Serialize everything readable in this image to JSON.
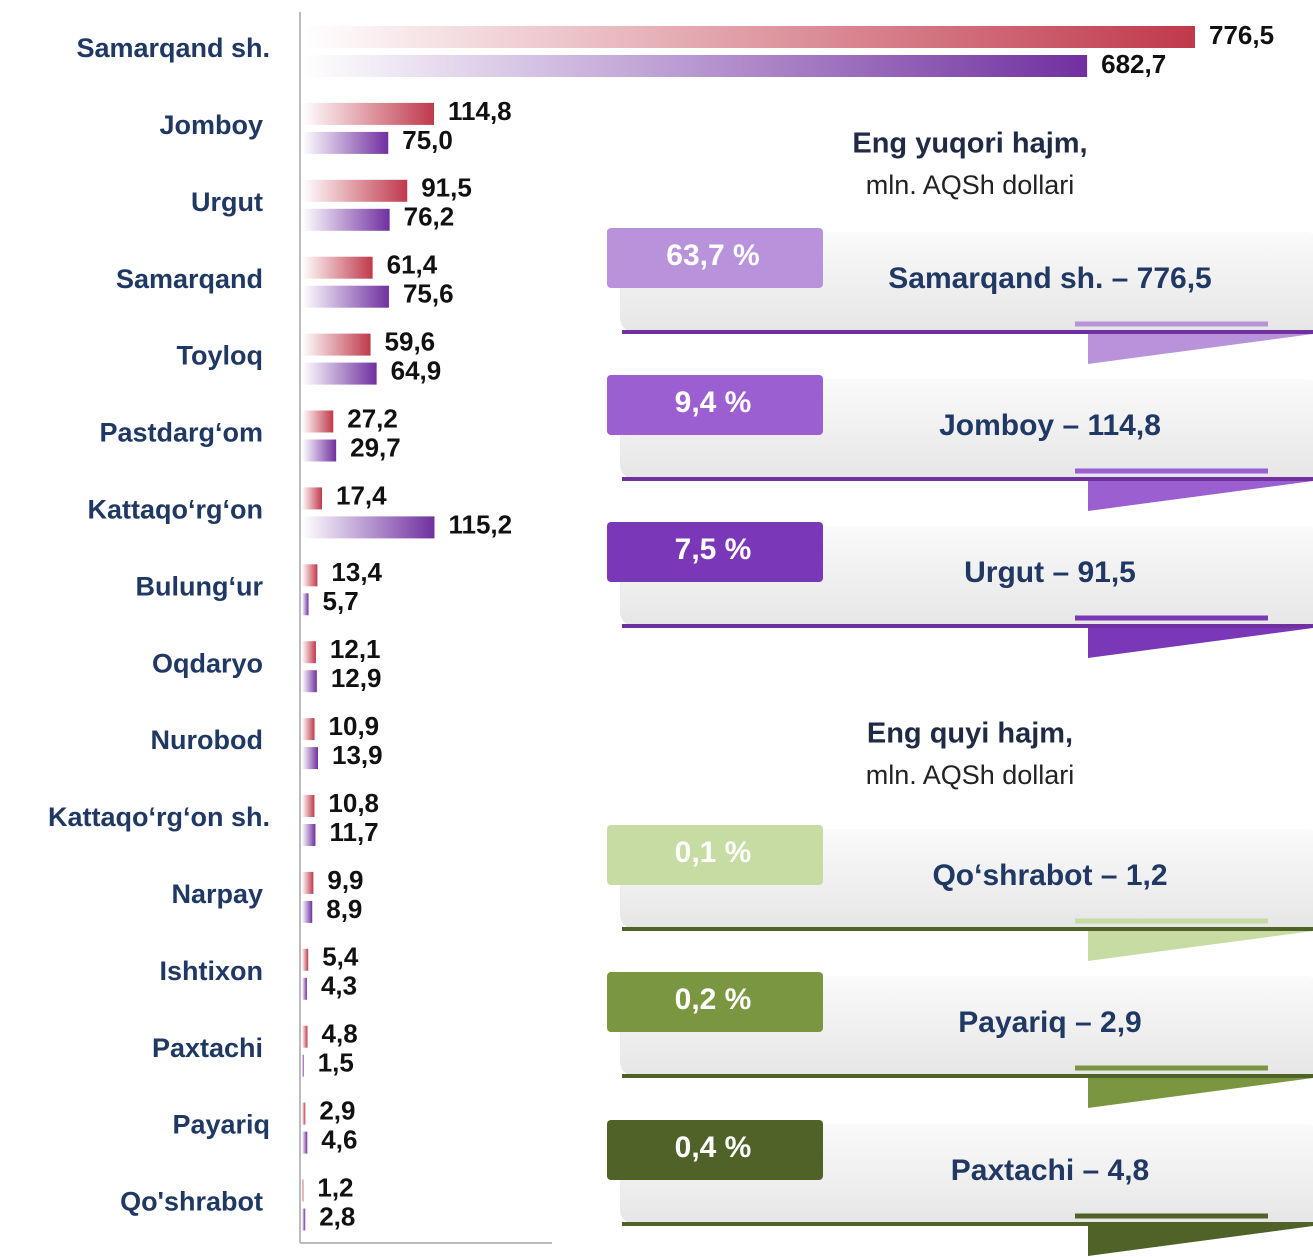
{
  "chart_data": {
    "type": "bar",
    "orientation": "horizontal",
    "categories": [
      "Samarqand sh.",
      "Jomboy",
      "Urgut",
      "Samarqand",
      "Toyloq",
      "Pastdarg‘om",
      "Kattaqo‘rg‘on",
      "Bulung‘ur",
      "Oqdaryo",
      "Nurobod",
      "Kattaqo‘rg‘on sh.",
      "Narpay",
      "Ishtixon",
      "Paxtachi",
      "Payariq",
      "Qo'shrabot"
    ],
    "series": [
      {
        "color": "#c0394b",
        "values": [
          776.5,
          114.8,
          91.5,
          61.4,
          59.6,
          27.2,
          17.4,
          13.4,
          12.1,
          10.9,
          10.8,
          9.9,
          5.4,
          4.8,
          2.9,
          1.2
        ],
        "value_labels": [
          "776,5",
          "114,8",
          "91,5",
          "61,4",
          "59,6",
          "27,2",
          "17,4",
          "13,4",
          "12,1",
          "10,9",
          "10,8",
          "9,9",
          "5,4",
          "4,8",
          "2,9",
          "1,2"
        ]
      },
      {
        "color": "#7030a0",
        "values": [
          682.7,
          75.0,
          76.2,
          75.6,
          64.9,
          29.7,
          115.2,
          5.7,
          12.9,
          13.9,
          11.7,
          8.9,
          4.3,
          1.5,
          4.6,
          2.8
        ],
        "value_labels": [
          "682,7",
          "75,0",
          "76,2",
          "75,6",
          "64,9",
          "29,7",
          "115,2",
          "5,7",
          "12,9",
          "13,9",
          "11,7",
          "8,9",
          "4,3",
          "1,5",
          "4,6",
          "2,8"
        ]
      }
    ]
  },
  "highlights": [
    {
      "title": "Eng yuqori hajm,",
      "subtitle": "mln. AQSh dollari",
      "line_color": "#7030a0",
      "items": [
        {
          "percent": "63,7 %",
          "label": "Samarqand sh. – 776,5",
          "color": "#b893dc"
        },
        {
          "percent": "9,4 %",
          "label": "Jomboy – 114,8",
          "color": "#9b5fd2"
        },
        {
          "percent": "7,5 %",
          "label": "Urgut – 91,5",
          "color": "#7a38b8"
        }
      ]
    },
    {
      "title": "Eng quyi hajm,",
      "subtitle": "mln. AQSh dollari",
      "line_color": "#4f6228",
      "items": [
        {
          "percent": "0,1 %",
          "label": "Qo‘shrabot – 1,2",
          "color": "#c6dca2"
        },
        {
          "percent": "0,2 %",
          "label": "Payariq – 2,9",
          "color": "#7a9640"
        },
        {
          "percent": "0,4 %",
          "label": "Paxtachi – 4,8",
          "color": "#4f6228"
        }
      ]
    }
  ]
}
